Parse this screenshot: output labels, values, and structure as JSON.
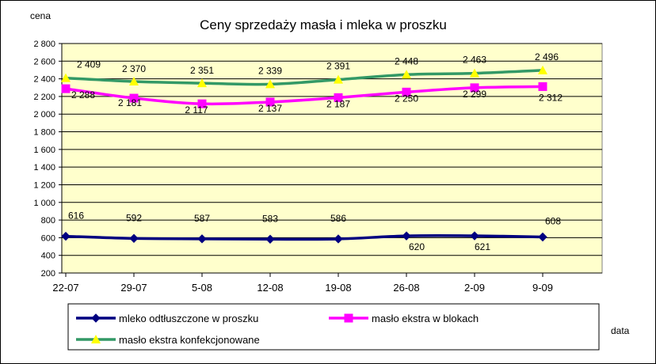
{
  "chart_data": {
    "type": "line",
    "title": "Ceny sprzedaży masła i mleka w proszku",
    "ylabel": "cena",
    "xlabel": "data",
    "categories": [
      "22-07",
      "29-07",
      "5-08",
      "12-08",
      "19-08",
      "26-08",
      "2-09",
      "9-09"
    ],
    "ylim": [
      200,
      2800
    ],
    "ytick_step": 200,
    "ytick_labels": [
      "200",
      "400",
      "600",
      "800",
      "1 000",
      "1 200",
      "1 400",
      "1 600",
      "1 800",
      "2 000",
      "2 200",
      "2 400",
      "2 600",
      "2 800"
    ],
    "grid": true,
    "legend_position": "bottom",
    "plot_background": "#ffffcc",
    "series": [
      {
        "name": "mleko odtłuszczone w proszku",
        "color": "#000080",
        "marker": "diamond",
        "values": [
          616,
          592,
          587,
          583,
          586,
          620,
          621,
          608
        ],
        "labels": [
          "616",
          "592",
          "587",
          "583",
          "586",
          "620",
          "621",
          "608"
        ]
      },
      {
        "name": "masło ekstra w blokach",
        "color": "#ff00ff",
        "marker": "square",
        "values": [
          2288,
          2181,
          2117,
          2137,
          2187,
          2250,
          2299,
          2312
        ],
        "labels": [
          "2 288",
          "2 181",
          "2 117",
          "2 137",
          "2 187",
          "2 250",
          "2 299",
          "2 312"
        ]
      },
      {
        "name": "masło ekstra konfekcjonowane",
        "color": "#339966",
        "marker": "triangle",
        "marker_color": "#ffff00",
        "values": [
          2409,
          2370,
          2351,
          2339,
          2391,
          2448,
          2463,
          2496
        ],
        "labels": [
          "2 409",
          "2 370",
          "2 351",
          "2 339",
          "2 391",
          "2 448",
          "2 463",
          "2 496"
        ]
      }
    ]
  }
}
